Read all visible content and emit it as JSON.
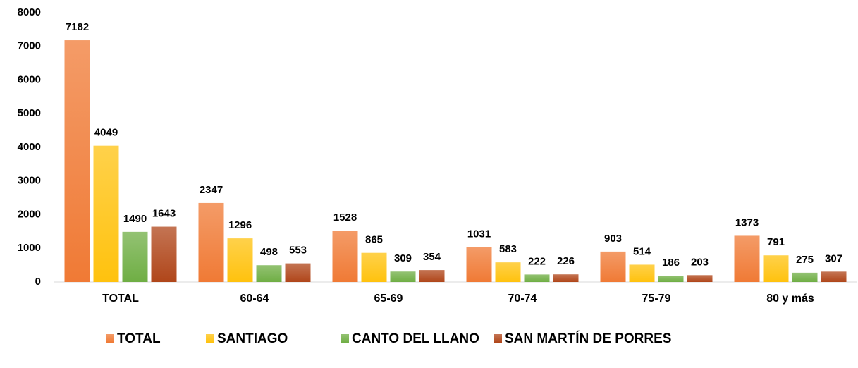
{
  "chart_data": {
    "type": "bar",
    "categories": [
      "TOTAL",
      "60-64",
      "65-69",
      "70-74",
      "75-79",
      "80 y más"
    ],
    "series": [
      {
        "name": "TOTAL",
        "color": "#f07a35",
        "values": [
          7182,
          2347,
          1528,
          1031,
          903,
          1373
        ]
      },
      {
        "name": "SANTIAGO",
        "color": "#ffc20e",
        "values": [
          4049,
          1296,
          865,
          583,
          514,
          791
        ]
      },
      {
        "name": "CANTO DEL LLANO",
        "color": "#6fae44",
        "values": [
          1490,
          498,
          309,
          222,
          186,
          275
        ]
      },
      {
        "name": "SAN MARTÍN DE PORRES",
        "color": "#b0461a",
        "values": [
          1643,
          553,
          354,
          226,
          203,
          307
        ]
      }
    ],
    "ylim": [
      0,
      8000
    ],
    "yticks": [
      0,
      1000,
      2000,
      3000,
      4000,
      5000,
      6000,
      7000,
      8000
    ],
    "grid": false,
    "legend": "bottom"
  }
}
